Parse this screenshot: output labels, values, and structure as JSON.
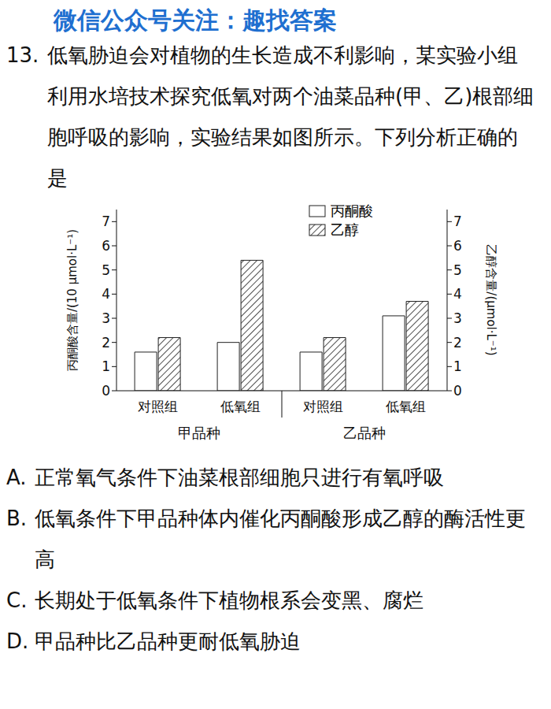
{
  "watermark": "微信公众号关注：趣找答案",
  "question_number": "13.",
  "stem": "低氧胁迫会对植物的生长造成不利影响，某实验小组利用水培技术探究低氧对两个油菜品种(甲、乙)根部细胞呼吸的影响，实验结果如图所示。下列分析正确的是",
  "chart_data": {
    "type": "bar",
    "categories": [
      "对照组",
      "低氧组",
      "对照组",
      "低氧组"
    ],
    "group_labels": [
      "甲品种",
      "乙品种"
    ],
    "y_label": "丙酮酸含量/(10 μmol·L⁻¹)",
    "y2_label": "乙醇含量/(μmol·L⁻¹)",
    "ylim": [
      0,
      7.5
    ],
    "yticks": [
      0,
      1,
      2,
      3,
      4,
      5,
      6,
      7
    ],
    "y2lim": [
      0,
      7.5
    ],
    "y2ticks": [
      0,
      1,
      2,
      3,
      4,
      5,
      6,
      7
    ],
    "legend": "top-right",
    "series": [
      {
        "name": "丙酮酸",
        "color": "#ffffff",
        "line_style": "solid",
        "values": [
          1.6,
          2.0,
          1.6,
          3.1
        ]
      },
      {
        "name": "乙醇",
        "color": "#222222",
        "line_style": "hatched",
        "axis": "y2",
        "values": [
          2.2,
          5.4,
          2.2,
          3.7
        ]
      }
    ]
  },
  "options": [
    {
      "letter": "A.",
      "text": "正常氧气条件下油菜根部细胞只进行有氧呼吸"
    },
    {
      "letter": "B.",
      "text": "低氧条件下甲品种体内催化丙酮酸形成乙醇的酶活性更高"
    },
    {
      "letter": "C.",
      "text": "长期处于低氧条件下植物根系会变黑、腐烂"
    },
    {
      "letter": "D.",
      "text": "甲品种比乙品种更耐低氧胁迫"
    }
  ]
}
